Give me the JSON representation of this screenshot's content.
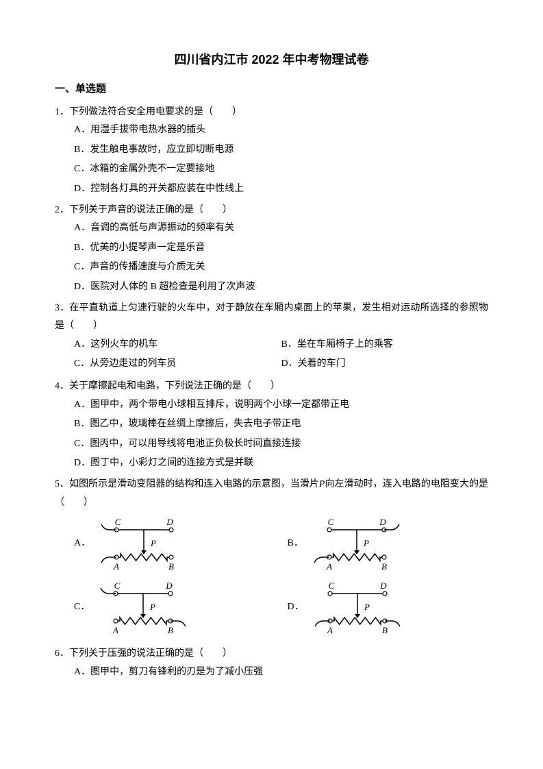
{
  "title": "四川省内江市 2022 年中考物理试卷",
  "section1": "一、单选题",
  "q1": {
    "stem": "1．下列做法符合安全用电要求的是（　　）",
    "A": "A．用湿手拔带电热水器的插头",
    "B": "B．发生触电事故时，应立即切断电源",
    "C": "C．冰箱的金属外壳不一定要接地",
    "D": "D．控制各灯具的开关都应装在中性线上"
  },
  "q2": {
    "stem": "2．下列关于声音的说法正确的是（　　）",
    "A": "A．音调的高低与声源振动的频率有关",
    "B": "B．优美的小提琴声一定是乐音",
    "C": "C．声音的传播速度与介质无关",
    "D": "D．医院对人体的 B 超检查是利用了次声波"
  },
  "q3": {
    "stem": "3．在平直轨道上匀速行驶的火车中，对于静放在车厢内桌面上的苹果，发生相对运动所选择的参照物是（　　）",
    "A": "A．这列火车的机车",
    "B": "B．坐在车厢椅子上的乘客",
    "C": "C．从旁边走过的列车员",
    "D": "D．关着的车门"
  },
  "q4": {
    "stem": "4．关于摩擦起电和电路，下列说法正确的是（　　）",
    "A": "A．图甲中，两个带电小球相互排斥，说明两个小球一定都带正电",
    "B": "B．图乙中，玻璃棒在丝绸上摩擦后，失去电子带正电",
    "C": "C．图丙中，可以用导线将电池正负极长时间直接连接",
    "D": "D．图丁中，小彩灯之间的连接方式是并联"
  },
  "q5": {
    "stem_pre": "5．如图所示是滑动变阻器的结构和连入电路的示意图，当滑片",
    "stem_P": "P",
    "stem_post": "向左滑动时，连入电路的电阻变大的是（　　）",
    "A": "A．",
    "B": "B．",
    "C": "C．",
    "D": "D．"
  },
  "q6": {
    "stem": "6．下列关于压强的说法正确的是（　　）",
    "A": "A．图甲中，剪刀有锋利的刃是为了减小压强"
  },
  "diagram": {
    "labels": {
      "C": "C",
      "D": "D",
      "A": "A",
      "B": "B",
      "P": "P"
    },
    "colors": {
      "stroke": "#000000",
      "fill": "#ffffff",
      "text": "#000000"
    },
    "fontsize": 13,
    "width": 140,
    "height": 85
  }
}
